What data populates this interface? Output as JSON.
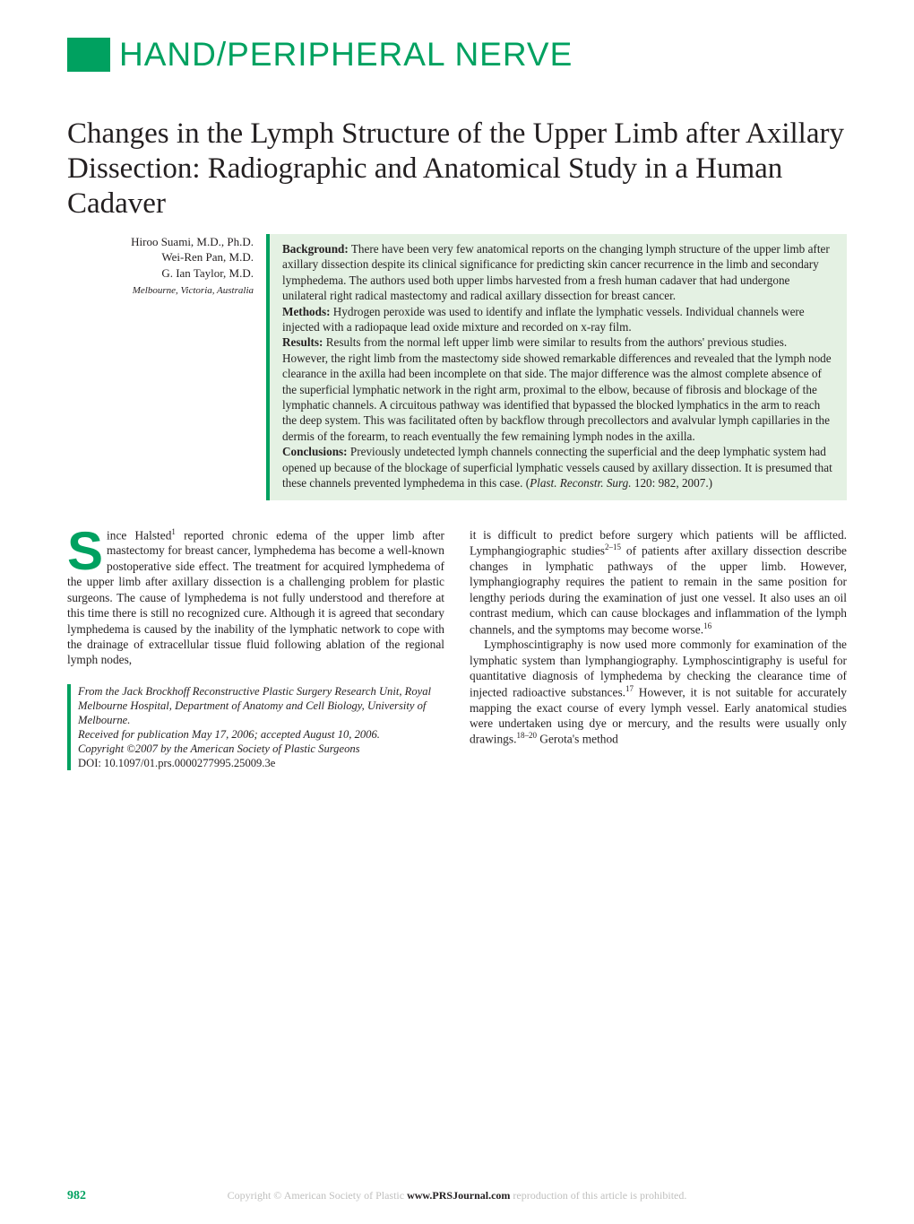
{
  "section_label": "HAND/PERIPHERAL NERVE",
  "colors": {
    "accent": "#00a160",
    "abstract_bg": "#e4f1e3",
    "body_text": "#231f20",
    "footer_grey": "#bfbfbe"
  },
  "title": "Changes in the Lymph Structure of the Upper Limb after Axillary Dissection: Radiographic and Anatomical Study in a Human Cadaver",
  "authors": [
    "Hiroo Suami, M.D., Ph.D.",
    "Wei-Ren Pan, M.D.",
    "G. Ian Taylor, M.D."
  ],
  "affiliation": "Melbourne, Victoria, Australia",
  "abstract": {
    "background_label": "Background:",
    "background": " There have been very few anatomical reports on the changing lymph structure of the upper limb after axillary dissection despite its clinical significance for predicting skin cancer recurrence in the limb and secondary lymphedema. The authors used both upper limbs harvested from a fresh human cadaver that had undergone unilateral right radical mastectomy and radical axillary dissection for breast cancer.",
    "methods_label": "Methods:",
    "methods": " Hydrogen peroxide was used to identify and inflate the lymphatic vessels. Individual channels were injected with a radiopaque lead oxide mixture and recorded on x-ray film.",
    "results_label": "Results:",
    "results": " Results from the normal left upper limb were similar to results from the authors' previous studies. However, the right limb from the mastectomy side showed remarkable differences and revealed that the lymph node clearance in the axilla had been incomplete on that side. The major difference was the almost complete absence of the superficial lymphatic network in the right arm, proximal to the elbow, because of fibrosis and blockage of the lymphatic channels. A circuitous pathway was identified that bypassed the blocked lymphatics in the arm to reach the deep system. This was facilitated often by backflow through precollectors and avalvular lymph capillaries in the dermis of the forearm, to reach eventually the few remaining lymph nodes in the axilla.",
    "conclusions_label": "Conclusions:",
    "conclusions": " Previously undetected lymph channels connecting the superficial and the deep lymphatic system had opened up because of the blockage of superficial lymphatic vessels caused by axillary dissection. It is presumed that these channels prevented lymphedema in this case.   (",
    "citation_ital": "Plast. Reconstr. Surg.",
    "citation_tail": " 120: 982, 2007.)"
  },
  "body": {
    "dropcap": "S",
    "col1_p1a": "ince Halsted",
    "col1_p1_sup1": "1",
    "col1_p1b": " reported chronic edema of the upper limb after mastectomy for breast cancer, lymphedema has become a well-known postoperative side effect. The treatment for acquired lymphedema of the upper limb after axillary dissection is a challenging problem for plastic surgeons. The cause of lymphedema is not fully understood and therefore at this time there is still no recognized cure. Although it is agreed that secondary lymphedema is caused by the inability of the lymphatic network to cope with the drainage of extracellular tissue fluid following ablation of the regional lymph nodes,",
    "col2_p1a": "it is difficult to predict before surgery which patients will be afflicted. Lymphangiographic studies",
    "col2_p1_sup1": "2–15",
    "col2_p1b": " of patients after axillary dissection describe changes in lymphatic pathways of the upper limb. However, lymphangiography requires the patient to remain in the same position for lengthy periods during the examination of just one vessel. It also uses an oil contrast medium, which can cause blockages and inflammation of the lymph channels, and the symptoms may become worse.",
    "col2_p1_sup2": "16",
    "col2_p2a": "Lymphoscintigraphy is now used more commonly for examination of the lymphatic system than lymphangiography. Lymphoscintigraphy is useful for quantitative diagnosis of lymphedema by checking the clearance time of injected radioactive substances.",
    "col2_p2_sup1": "17",
    "col2_p2b": " However, it is not suitable for accurately mapping the exact course of every lymph vessel. Early anatomical studies were undertaken using dye or mercury, and the results were usually only drawings.",
    "col2_p2_sup2": "18–20",
    "col2_p2c": " Gerota's method"
  },
  "footnote": {
    "from": "From the Jack Brockhoff Reconstructive Plastic Surgery Research Unit, Royal Melbourne Hospital, Department of Anatomy and Cell Biology, University of Melbourne.",
    "received": "Received for publication May 17, 2006; accepted August 10, 2006.",
    "copyright": "Copyright ©2007 by the American Society of Plastic Surgeons",
    "doi": "DOI: 10.1097/01.prs.0000277995.25009.3e"
  },
  "footer": {
    "page_number": "982",
    "copyright_line_a": "Copyright © American Society of Plastic ",
    "url": "www.PRSJournal.com",
    "copyright_line_b": " reproduction of this article is prohibited."
  }
}
